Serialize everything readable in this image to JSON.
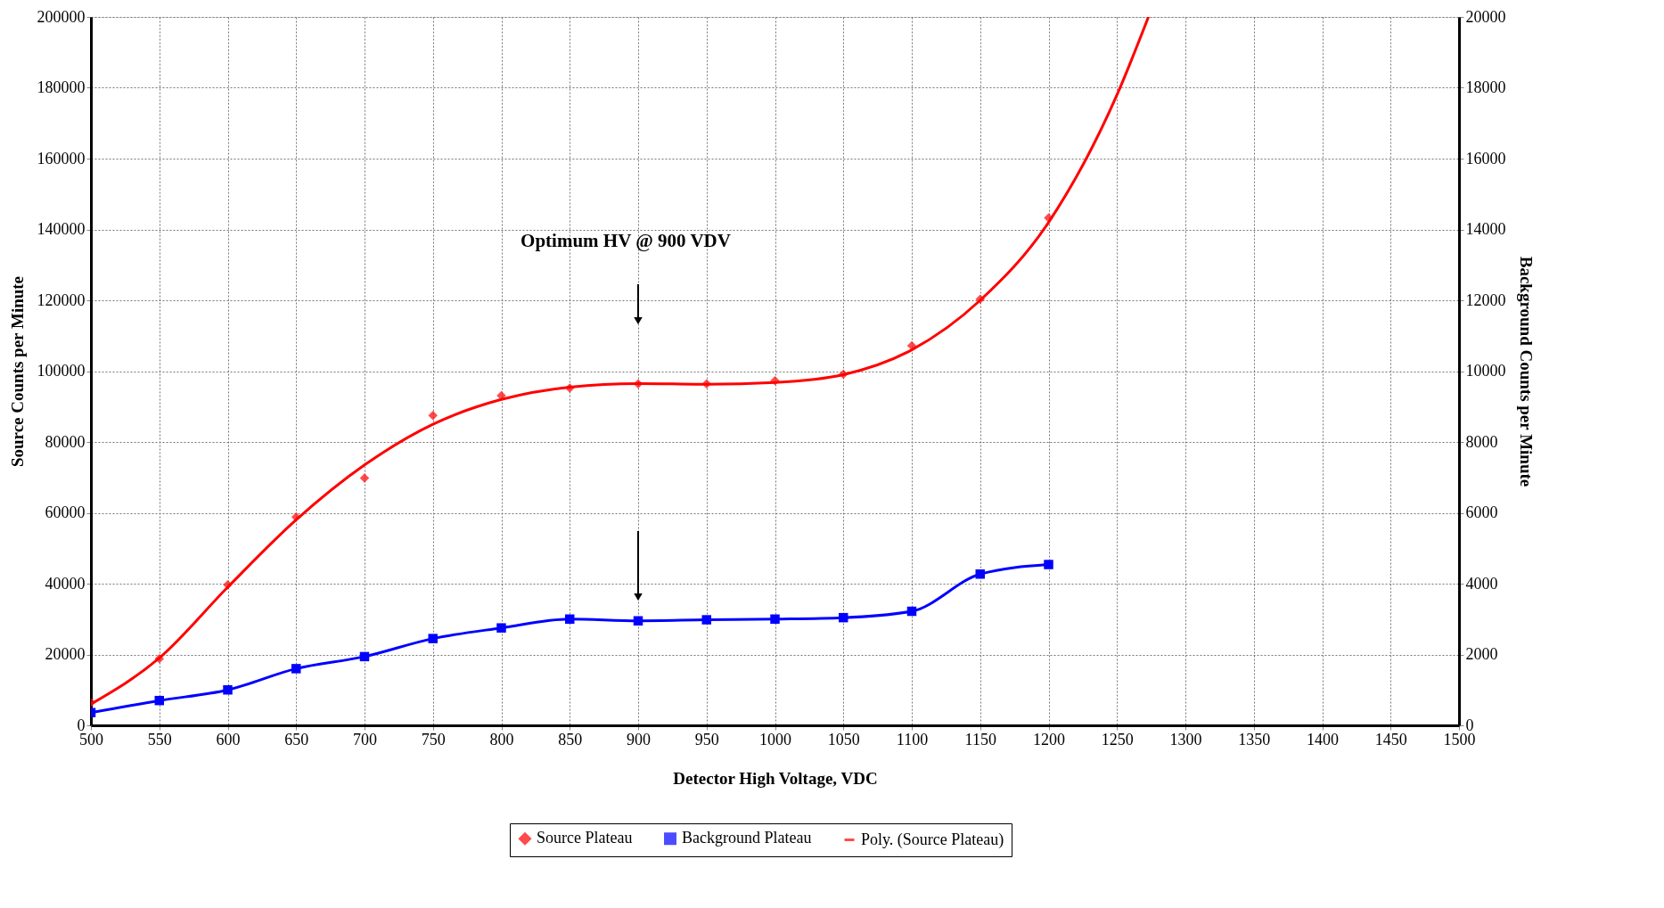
{
  "chart_data": {
    "type": "line",
    "xlabel": "Detector High Voltage, VDC",
    "ylabel": "Source Counts per Minute",
    "y2label": "Background Counts per Minute",
    "xlim": [
      500,
      1500
    ],
    "xticks": [
      500,
      550,
      600,
      650,
      700,
      750,
      800,
      850,
      900,
      950,
      1000,
      1050,
      1100,
      1150,
      1200,
      1250,
      1300,
      1350,
      1400,
      1450,
      1500
    ],
    "ylim": [
      0,
      200000
    ],
    "yticks": [
      0,
      20000,
      40000,
      60000,
      80000,
      100000,
      120000,
      140000,
      160000,
      180000,
      200000
    ],
    "y2lim": [
      0,
      20000
    ],
    "y2ticks": [
      0,
      2000,
      4000,
      6000,
      8000,
      10000,
      12000,
      14000,
      16000,
      18000,
      20000
    ],
    "grid": true,
    "legend": "bottom",
    "annotations": [
      "Optimum HV @ 900 VDV"
    ],
    "series": [
      {
        "name": "Source Plateau",
        "type": "scatter",
        "marker": "diamond",
        "color": "#ff0000",
        "x": [
          500,
          550,
          600,
          650,
          700,
          750,
          800,
          850,
          900,
          950,
          1000,
          1050,
          1100,
          1150,
          1200
        ],
        "values": [
          6500,
          18800,
          39700,
          58800,
          69800,
          87500,
          93100,
          95200,
          96400,
          96400,
          97300,
          99100,
          107200,
          120300,
          143300
        ]
      },
      {
        "name": "Background Plateau",
        "marker": "square",
        "axis": "y2",
        "color": "#0000ff",
        "x": [
          500,
          550,
          600,
          650,
          700,
          750,
          800,
          850,
          900,
          950,
          1000,
          1050,
          1100,
          1150,
          1200
        ],
        "values": [
          360,
          700,
          1000,
          1600,
          1940,
          2450,
          2750,
          3000,
          2950,
          2980,
          3000,
          3040,
          3220,
          4270,
          4540
        ]
      },
      {
        "name": "Poly. (Source Plateau)",
        "marker": "none",
        "color": "#ff0000",
        "x": [
          500,
          550,
          600,
          650,
          700,
          750,
          800,
          850,
          900,
          950,
          1000,
          1050,
          1100,
          1150,
          1200,
          1250,
          1273
        ],
        "values": [
          6000,
          19000,
          39000,
          58000,
          73500,
          85000,
          92000,
          95500,
          96500,
          96300,
          96800,
          99000,
          106000,
          120000,
          142000,
          178000,
          200000
        ]
      }
    ]
  }
}
